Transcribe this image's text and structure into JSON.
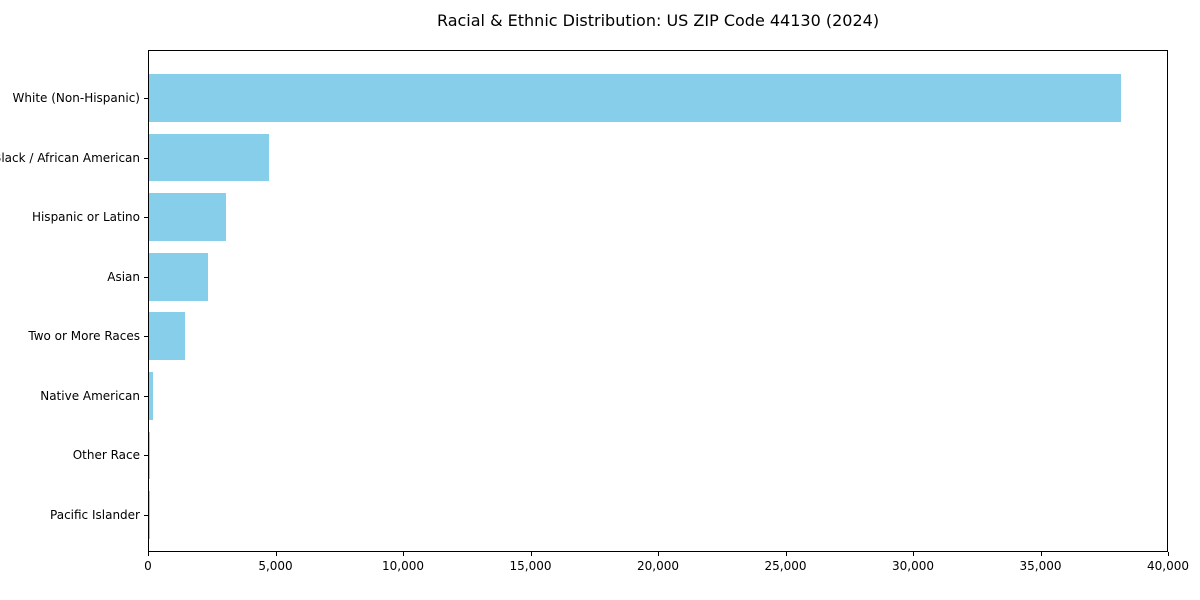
{
  "chart_data": {
    "type": "bar",
    "orientation": "horizontal",
    "title": "Racial & Ethnic Distribution: US ZIP Code 44130 (2024)",
    "xlabel": "",
    "ylabel": "",
    "categories": [
      "White (Non-Hispanic)",
      "Black / African American",
      "Hispanic or Latino",
      "Asian",
      "Two or More Races",
      "Native American",
      "Other Race",
      "Pacific Islander"
    ],
    "values": [
      38100,
      4700,
      3000,
      2300,
      1400,
      160,
      40,
      15
    ],
    "xlim": [
      0,
      40000
    ],
    "xticks": [
      0,
      5000,
      10000,
      15000,
      20000,
      25000,
      30000,
      35000,
      40000
    ],
    "xtick_labels": [
      "0",
      "5,000",
      "10,000",
      "15,000",
      "20,000",
      "25,000",
      "30,000",
      "35,000",
      "40,000"
    ],
    "bar_color": "#87CEEB",
    "axis_color": "#000000",
    "background_color": "#ffffff",
    "grid": false,
    "legend": false
  }
}
